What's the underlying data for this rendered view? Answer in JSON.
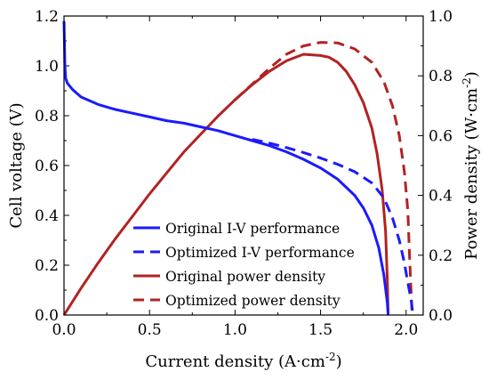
{
  "chart_data": {
    "type": "line",
    "title": "",
    "xlabel_main": "Current density (A·cm",
    "xlabel_sup": "-2",
    "xlabel_close": ")",
    "ylabel_left": "Cell voltage (V)",
    "ylabel_right_main": "Power density (W·cm",
    "ylabel_right_sup": "-2",
    "ylabel_right_close": ")",
    "xlim": [
      0,
      2.1
    ],
    "ylim_left": [
      0,
      1.2
    ],
    "ylim_right": [
      0,
      1.0
    ],
    "x_ticks": [
      "0.0",
      "0.5",
      "1.0",
      "1.5",
      "2.0"
    ],
    "y_left_ticks": [
      "0.0",
      "0.2",
      "0.4",
      "0.6",
      "0.8",
      "1.0",
      "1.2"
    ],
    "y_right_ticks": [
      "0.0",
      "0.2",
      "0.4",
      "0.6",
      "0.8",
      "1.0"
    ],
    "legend_position": "lower-left",
    "series": [
      {
        "name": "Original I-V performance",
        "axis": "left",
        "color": "#1a1aff",
        "dash": "solid",
        "points": [
          [
            0.0,
            1.18
          ],
          [
            0.005,
            1.0
          ],
          [
            0.01,
            0.95
          ],
          [
            0.02,
            0.93
          ],
          [
            0.05,
            0.905
          ],
          [
            0.1,
            0.875
          ],
          [
            0.2,
            0.845
          ],
          [
            0.3,
            0.825
          ],
          [
            0.4,
            0.81
          ],
          [
            0.5,
            0.795
          ],
          [
            0.6,
            0.78
          ],
          [
            0.7,
            0.77
          ],
          [
            0.8,
            0.755
          ],
          [
            0.9,
            0.74
          ],
          [
            1.0,
            0.72
          ],
          [
            1.1,
            0.7
          ],
          [
            1.2,
            0.68
          ],
          [
            1.3,
            0.655
          ],
          [
            1.4,
            0.625
          ],
          [
            1.5,
            0.59
          ],
          [
            1.6,
            0.545
          ],
          [
            1.7,
            0.48
          ],
          [
            1.75,
            0.43
          ],
          [
            1.8,
            0.36
          ],
          [
            1.84,
            0.27
          ],
          [
            1.87,
            0.16
          ],
          [
            1.89,
            0.05
          ],
          [
            1.895,
            0.0
          ]
        ]
      },
      {
        "name": "Optimized I-V performance",
        "axis": "left",
        "color": "#1a1aff",
        "dash": "dashed",
        "points": [
          [
            1.1,
            0.705
          ],
          [
            1.2,
            0.69
          ],
          [
            1.3,
            0.672
          ],
          [
            1.4,
            0.652
          ],
          [
            1.5,
            0.63
          ],
          [
            1.6,
            0.605
          ],
          [
            1.7,
            0.575
          ],
          [
            1.8,
            0.53
          ],
          [
            1.87,
            0.47
          ],
          [
            1.92,
            0.39
          ],
          [
            1.96,
            0.3
          ],
          [
            1.99,
            0.21
          ],
          [
            2.01,
            0.13
          ],
          [
            2.03,
            0.06
          ],
          [
            2.04,
            0.0
          ]
        ]
      },
      {
        "name": "Original power density",
        "axis": "right",
        "color": "#b22222",
        "dash": "solid",
        "points": [
          [
            0.0,
            0.0
          ],
          [
            0.1,
            0.09
          ],
          [
            0.2,
            0.175
          ],
          [
            0.3,
            0.255
          ],
          [
            0.4,
            0.33
          ],
          [
            0.5,
            0.405
          ],
          [
            0.6,
            0.475
          ],
          [
            0.7,
            0.545
          ],
          [
            0.8,
            0.605
          ],
          [
            0.9,
            0.665
          ],
          [
            1.0,
            0.72
          ],
          [
            1.1,
            0.77
          ],
          [
            1.2,
            0.815
          ],
          [
            1.3,
            0.85
          ],
          [
            1.4,
            0.872
          ],
          [
            1.5,
            0.868
          ],
          [
            1.55,
            0.862
          ],
          [
            1.6,
            0.845
          ],
          [
            1.65,
            0.815
          ],
          [
            1.7,
            0.77
          ],
          [
            1.75,
            0.71
          ],
          [
            1.8,
            0.625
          ],
          [
            1.83,
            0.54
          ],
          [
            1.86,
            0.42
          ],
          [
            1.88,
            0.28
          ],
          [
            1.89,
            0.12
          ],
          [
            1.895,
            0.0
          ]
        ]
      },
      {
        "name": "Optimized power density",
        "axis": "right",
        "color": "#b22222",
        "dash": "dashed",
        "points": [
          [
            1.0,
            0.72
          ],
          [
            1.1,
            0.772
          ],
          [
            1.2,
            0.825
          ],
          [
            1.3,
            0.872
          ],
          [
            1.4,
            0.9
          ],
          [
            1.5,
            0.912
          ],
          [
            1.6,
            0.91
          ],
          [
            1.7,
            0.89
          ],
          [
            1.8,
            0.845
          ],
          [
            1.87,
            0.78
          ],
          [
            1.92,
            0.7
          ],
          [
            1.96,
            0.6
          ],
          [
            1.99,
            0.48
          ],
          [
            2.01,
            0.35
          ],
          [
            2.02,
            0.2
          ],
          [
            2.035,
            0.0
          ]
        ]
      }
    ]
  }
}
